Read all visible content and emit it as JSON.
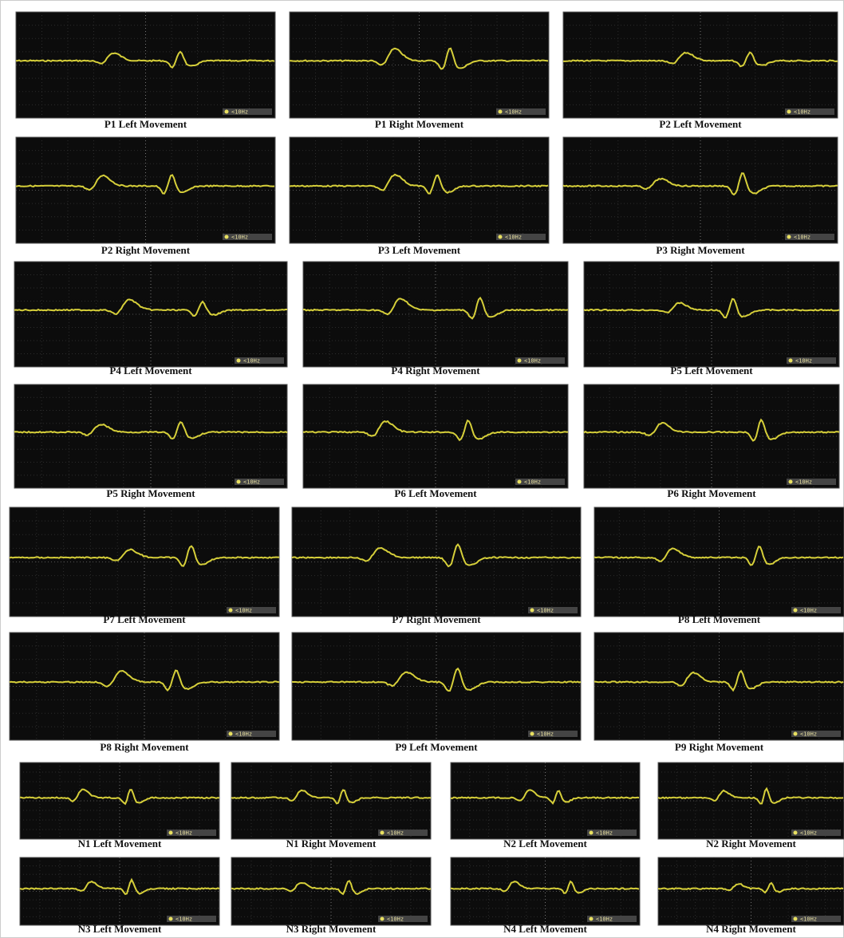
{
  "badge_text": "<10Hz",
  "panels": [
    "P1 Left Movement",
    "P1 Right Movement",
    "P2 Left Movement",
    "P2 Right Movement",
    "P3 Left Movement",
    "P3 Right Movement",
    "P4 Left Movement",
    "P4 Right Movement",
    "P5 Left Movement",
    "P5 Right Movement",
    "P6 Left Movement",
    "P6 Right Movement",
    "P7 Left Movement",
    "P7 Right Movement",
    "P8 Left Movement",
    "P8 Right Movement",
    "P9 Left Movement",
    "P9 Right Movement",
    "N1 Left Movement",
    "N1 Right Movement",
    "N2 Left Movement",
    "N2 Right Movement",
    "N3 Left Movement",
    "N3 Right Movement",
    "N4 Left Movement",
    "N4 Right Movement"
  ]
}
